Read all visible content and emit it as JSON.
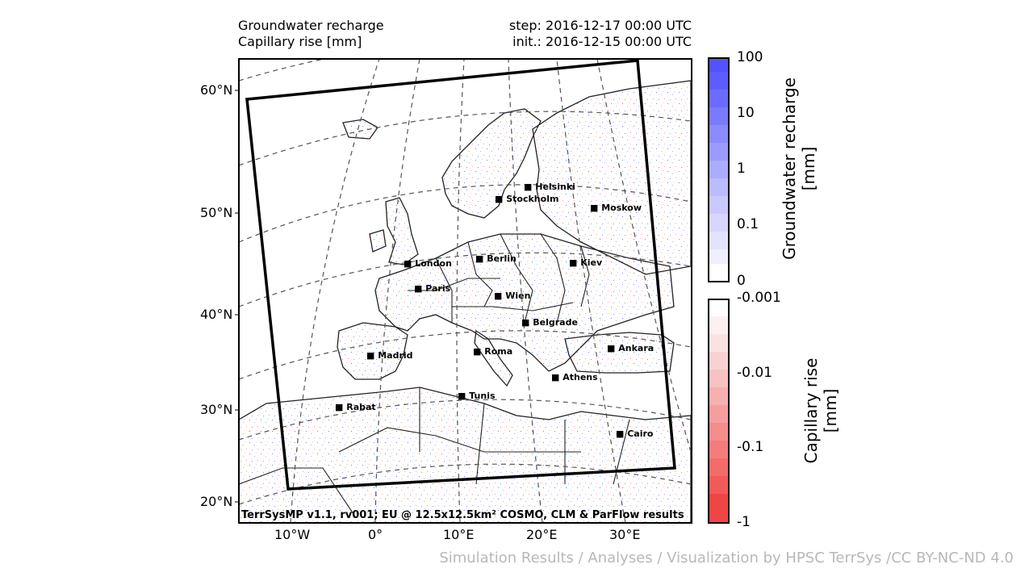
{
  "header": {
    "title_line1": "Groundwater recharge",
    "title_line2": "Capillary rise [mm]",
    "step": "step: 2016-12-17 00:00 UTC",
    "init": "init.: 2016-12-15 00:00 UTC"
  },
  "map": {
    "credit": "TerrSysMP v1.1, rv001; EU @ 12.5x12.5km² COSMO, CLM & ParFlow results",
    "lat_labels": [
      "60°N",
      "50°N",
      "40°N",
      "30°N",
      "20°N"
    ],
    "lon_labels": [
      "10°W",
      "0°",
      "10°E",
      "20°E",
      "30°E"
    ],
    "cities": [
      {
        "name": "Helsinki"
      },
      {
        "name": "Stockholm"
      },
      {
        "name": "Moskow"
      },
      {
        "name": "London"
      },
      {
        "name": "Berlin"
      },
      {
        "name": "Kiev"
      },
      {
        "name": "Paris"
      },
      {
        "name": "Wien"
      },
      {
        "name": "Belgrade"
      },
      {
        "name": "Madrid"
      },
      {
        "name": "Roma"
      },
      {
        "name": "Ankara"
      },
      {
        "name": "Athens"
      },
      {
        "name": "Tunis"
      },
      {
        "name": "Rabat"
      },
      {
        "name": "Cairo"
      }
    ]
  },
  "colorbar_recharge": {
    "label_line1": "Groundwater recharge",
    "label_line2": "[mm]",
    "ticks": [
      "100",
      "10",
      "1",
      "0.1",
      "0"
    ],
    "color": "#5555ff"
  },
  "colorbar_capillary": {
    "label_line1": "Capillary rise",
    "label_line2": "[mm]",
    "ticks": [
      "-0.001",
      "-0.01",
      "-0.1",
      "-1"
    ],
    "color": "#f04545"
  },
  "footer": {
    "attribution": "Simulation Results / Analyses / Visualization by HPSC TerrSys /CC BY-NC-ND 4.0"
  }
}
